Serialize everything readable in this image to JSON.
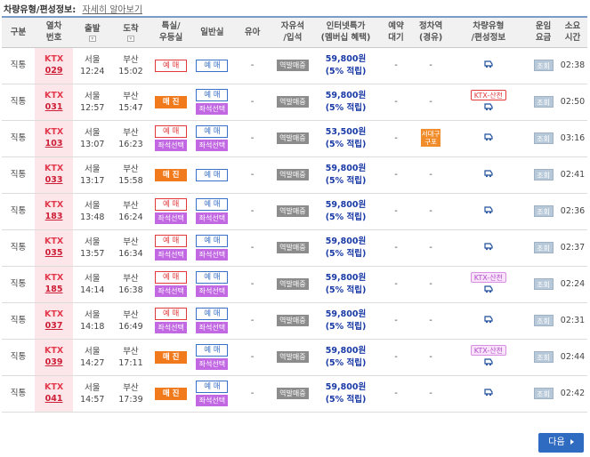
{
  "topbar": {
    "label": "차량유형/편성정보:",
    "link": "자세히 알아보기"
  },
  "headers": {
    "category": "구분",
    "train_no": "열차\n번호",
    "depart": "출발",
    "arrive": "도착",
    "special": "특실/\n우등실",
    "general": "일반실",
    "infant": "유아",
    "standing": "자유석\n/입석",
    "internet": "인터넷특가\n(멤버십 혜택)",
    "waitlist": "예약\n대기",
    "stop": "정차역\n(경유)",
    "car_type": "차량유형\n/편성정보",
    "fare": "운임\n요금",
    "duration": "소요\n시간"
  },
  "labels": {
    "reserve": "예 매",
    "soldout": "매 진",
    "seat_select": "좌석선택",
    "station_sale": "역발매중",
    "fare_btn": "조회",
    "dash": "-",
    "next": "다음"
  },
  "rows": [
    {
      "category": "직통",
      "type": "KTX",
      "number": "029",
      "dep_station": "서울",
      "dep_time": "12:24",
      "arr_station": "부산",
      "arr_time": "15:02",
      "special": "reserve",
      "general": "reserve",
      "general_seat": false,
      "price": "59,800원",
      "benefit": "(5% 적립)",
      "stop": "",
      "badge": "",
      "duration": "02:38"
    },
    {
      "category": "직통",
      "type": "KTX",
      "number": "031",
      "dep_station": "서울",
      "dep_time": "12:57",
      "arr_station": "부산",
      "arr_time": "15:47",
      "special": "soldout",
      "general": "reserve",
      "general_seat": true,
      "price": "59,800원",
      "benefit": "(5% 적립)",
      "stop": "",
      "badge": "KTX-산천",
      "badge_style": "red",
      "duration": "02:50"
    },
    {
      "category": "직통",
      "type": "KTX",
      "number": "103",
      "dep_station": "서울",
      "dep_time": "13:07",
      "arr_station": "부산",
      "arr_time": "16:23",
      "special": "reserve_seat",
      "general": "reserve",
      "general_seat": true,
      "price": "53,500원",
      "benefit": "(5% 적립)",
      "stop": "서대구\n구포",
      "badge": "",
      "duration": "03:16"
    },
    {
      "category": "직통",
      "type": "KTX",
      "number": "033",
      "dep_station": "서울",
      "dep_time": "13:17",
      "arr_station": "부산",
      "arr_time": "15:58",
      "special": "soldout",
      "general": "reserve",
      "general_seat": false,
      "price": "59,800원",
      "benefit": "(5% 적립)",
      "stop": "",
      "badge": "",
      "duration": "02:41"
    },
    {
      "category": "직통",
      "type": "KTX",
      "number": "183",
      "dep_station": "서울",
      "dep_time": "13:48",
      "arr_station": "부산",
      "arr_time": "16:24",
      "special": "reserve_seat",
      "general": "reserve",
      "general_seat": true,
      "price": "59,800원",
      "benefit": "(5% 적립)",
      "stop": "",
      "badge": "",
      "duration": "02:36"
    },
    {
      "category": "직통",
      "type": "KTX",
      "number": "035",
      "dep_station": "서울",
      "dep_time": "13:57",
      "arr_station": "부산",
      "arr_time": "16:34",
      "special": "reserve_seat",
      "general": "reserve",
      "general_seat": true,
      "price": "59,800원",
      "benefit": "(5% 적립)",
      "stop": "",
      "badge": "",
      "duration": "02:37"
    },
    {
      "category": "직통",
      "type": "KTX",
      "number": "185",
      "dep_station": "서울",
      "dep_time": "14:14",
      "arr_station": "부산",
      "arr_time": "16:38",
      "special": "reserve_seat",
      "general": "reserve",
      "general_seat": true,
      "price": "59,800원",
      "benefit": "(5% 적립)",
      "stop": "",
      "badge": "KTX-산천",
      "badge_style": "pink",
      "duration": "02:24"
    },
    {
      "category": "직통",
      "type": "KTX",
      "number": "037",
      "dep_station": "서울",
      "dep_time": "14:18",
      "arr_station": "부산",
      "arr_time": "16:49",
      "special": "reserve_seat",
      "general": "reserve",
      "general_seat": true,
      "price": "59,800원",
      "benefit": "(5% 적립)",
      "stop": "",
      "badge": "",
      "duration": "02:31"
    },
    {
      "category": "직통",
      "type": "KTX",
      "number": "039",
      "dep_station": "서울",
      "dep_time": "14:27",
      "arr_station": "부산",
      "arr_time": "17:11",
      "special": "soldout",
      "general": "reserve",
      "general_seat": true,
      "price": "59,800원",
      "benefit": "(5% 적립)",
      "stop": "",
      "badge": "KTX-산천",
      "badge_style": "pink",
      "duration": "02:44"
    },
    {
      "category": "직통",
      "type": "KTX",
      "number": "041",
      "dep_station": "서울",
      "dep_time": "14:57",
      "arr_station": "부산",
      "arr_time": "17:39",
      "special": "soldout",
      "general": "reserve",
      "general_seat": true,
      "price": "59,800원",
      "benefit": "(5% 적립)",
      "stop": "",
      "badge": "",
      "duration": "02:42"
    }
  ]
}
